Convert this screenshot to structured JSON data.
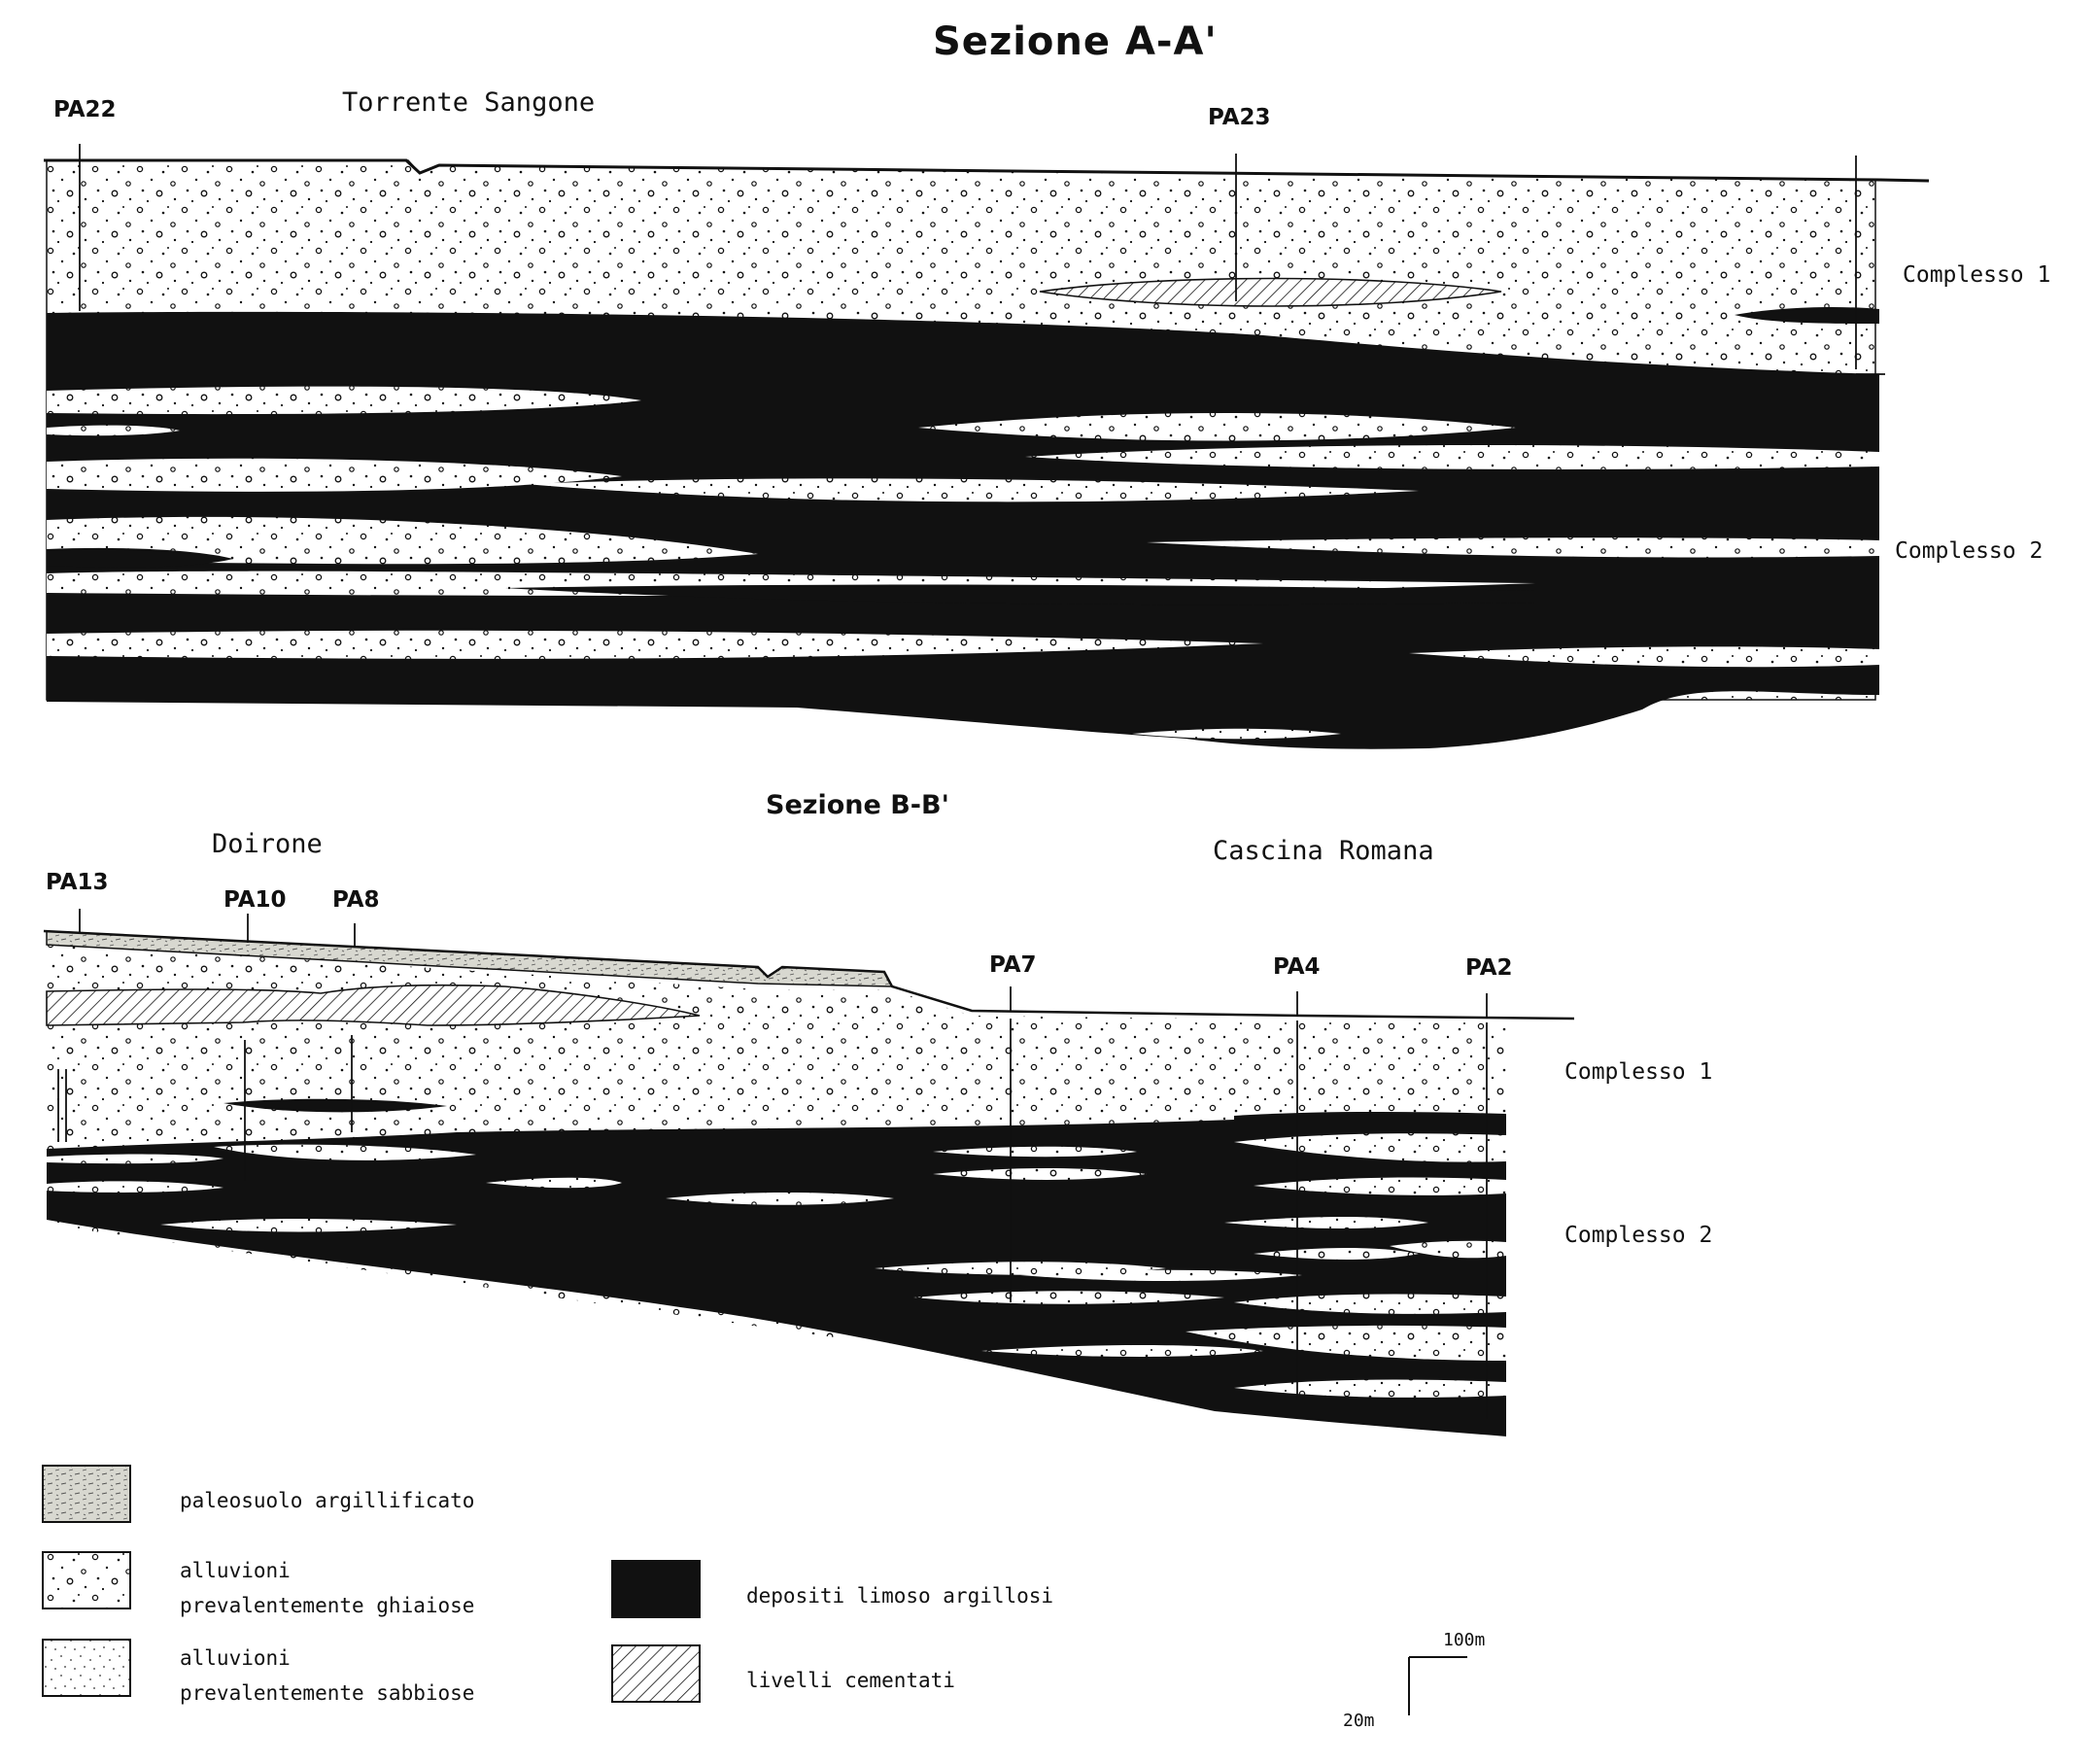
{
  "section_a": {
    "title": "Sezione A-A'",
    "place_label": "Torrente Sangone",
    "wells": [
      "PA22",
      "PA23"
    ],
    "complexes": [
      "Complesso 1",
      "Complesso 2"
    ]
  },
  "section_b": {
    "title": "Sezione B-B'",
    "place_labels": [
      "Doirone",
      "Cascina Romana"
    ],
    "wells": [
      "PA13",
      "PA10",
      "PA8",
      "PA7",
      "PA4",
      "PA2"
    ],
    "complexes": [
      "Complesso 1",
      "Complesso 2"
    ]
  },
  "legend": {
    "items": [
      {
        "pattern": "paleosol",
        "label": "paleosuolo argillificato"
      },
      {
        "pattern": "gravel",
        "label": "alluvioni prevalentemente ghiaiose"
      },
      {
        "pattern": "sand",
        "label": "alluvioni prevalentemente sabbiose"
      },
      {
        "pattern": "clay",
        "label": "depositi limoso argillosi"
      },
      {
        "pattern": "cemented",
        "label": "livelli cementati"
      }
    ]
  },
  "scale_bar": {
    "horizontal": "100m",
    "vertical": "20m"
  },
  "colors": {
    "ink": "#111111",
    "paper": "#ffffff",
    "paleosol": "#d8d8d0"
  }
}
